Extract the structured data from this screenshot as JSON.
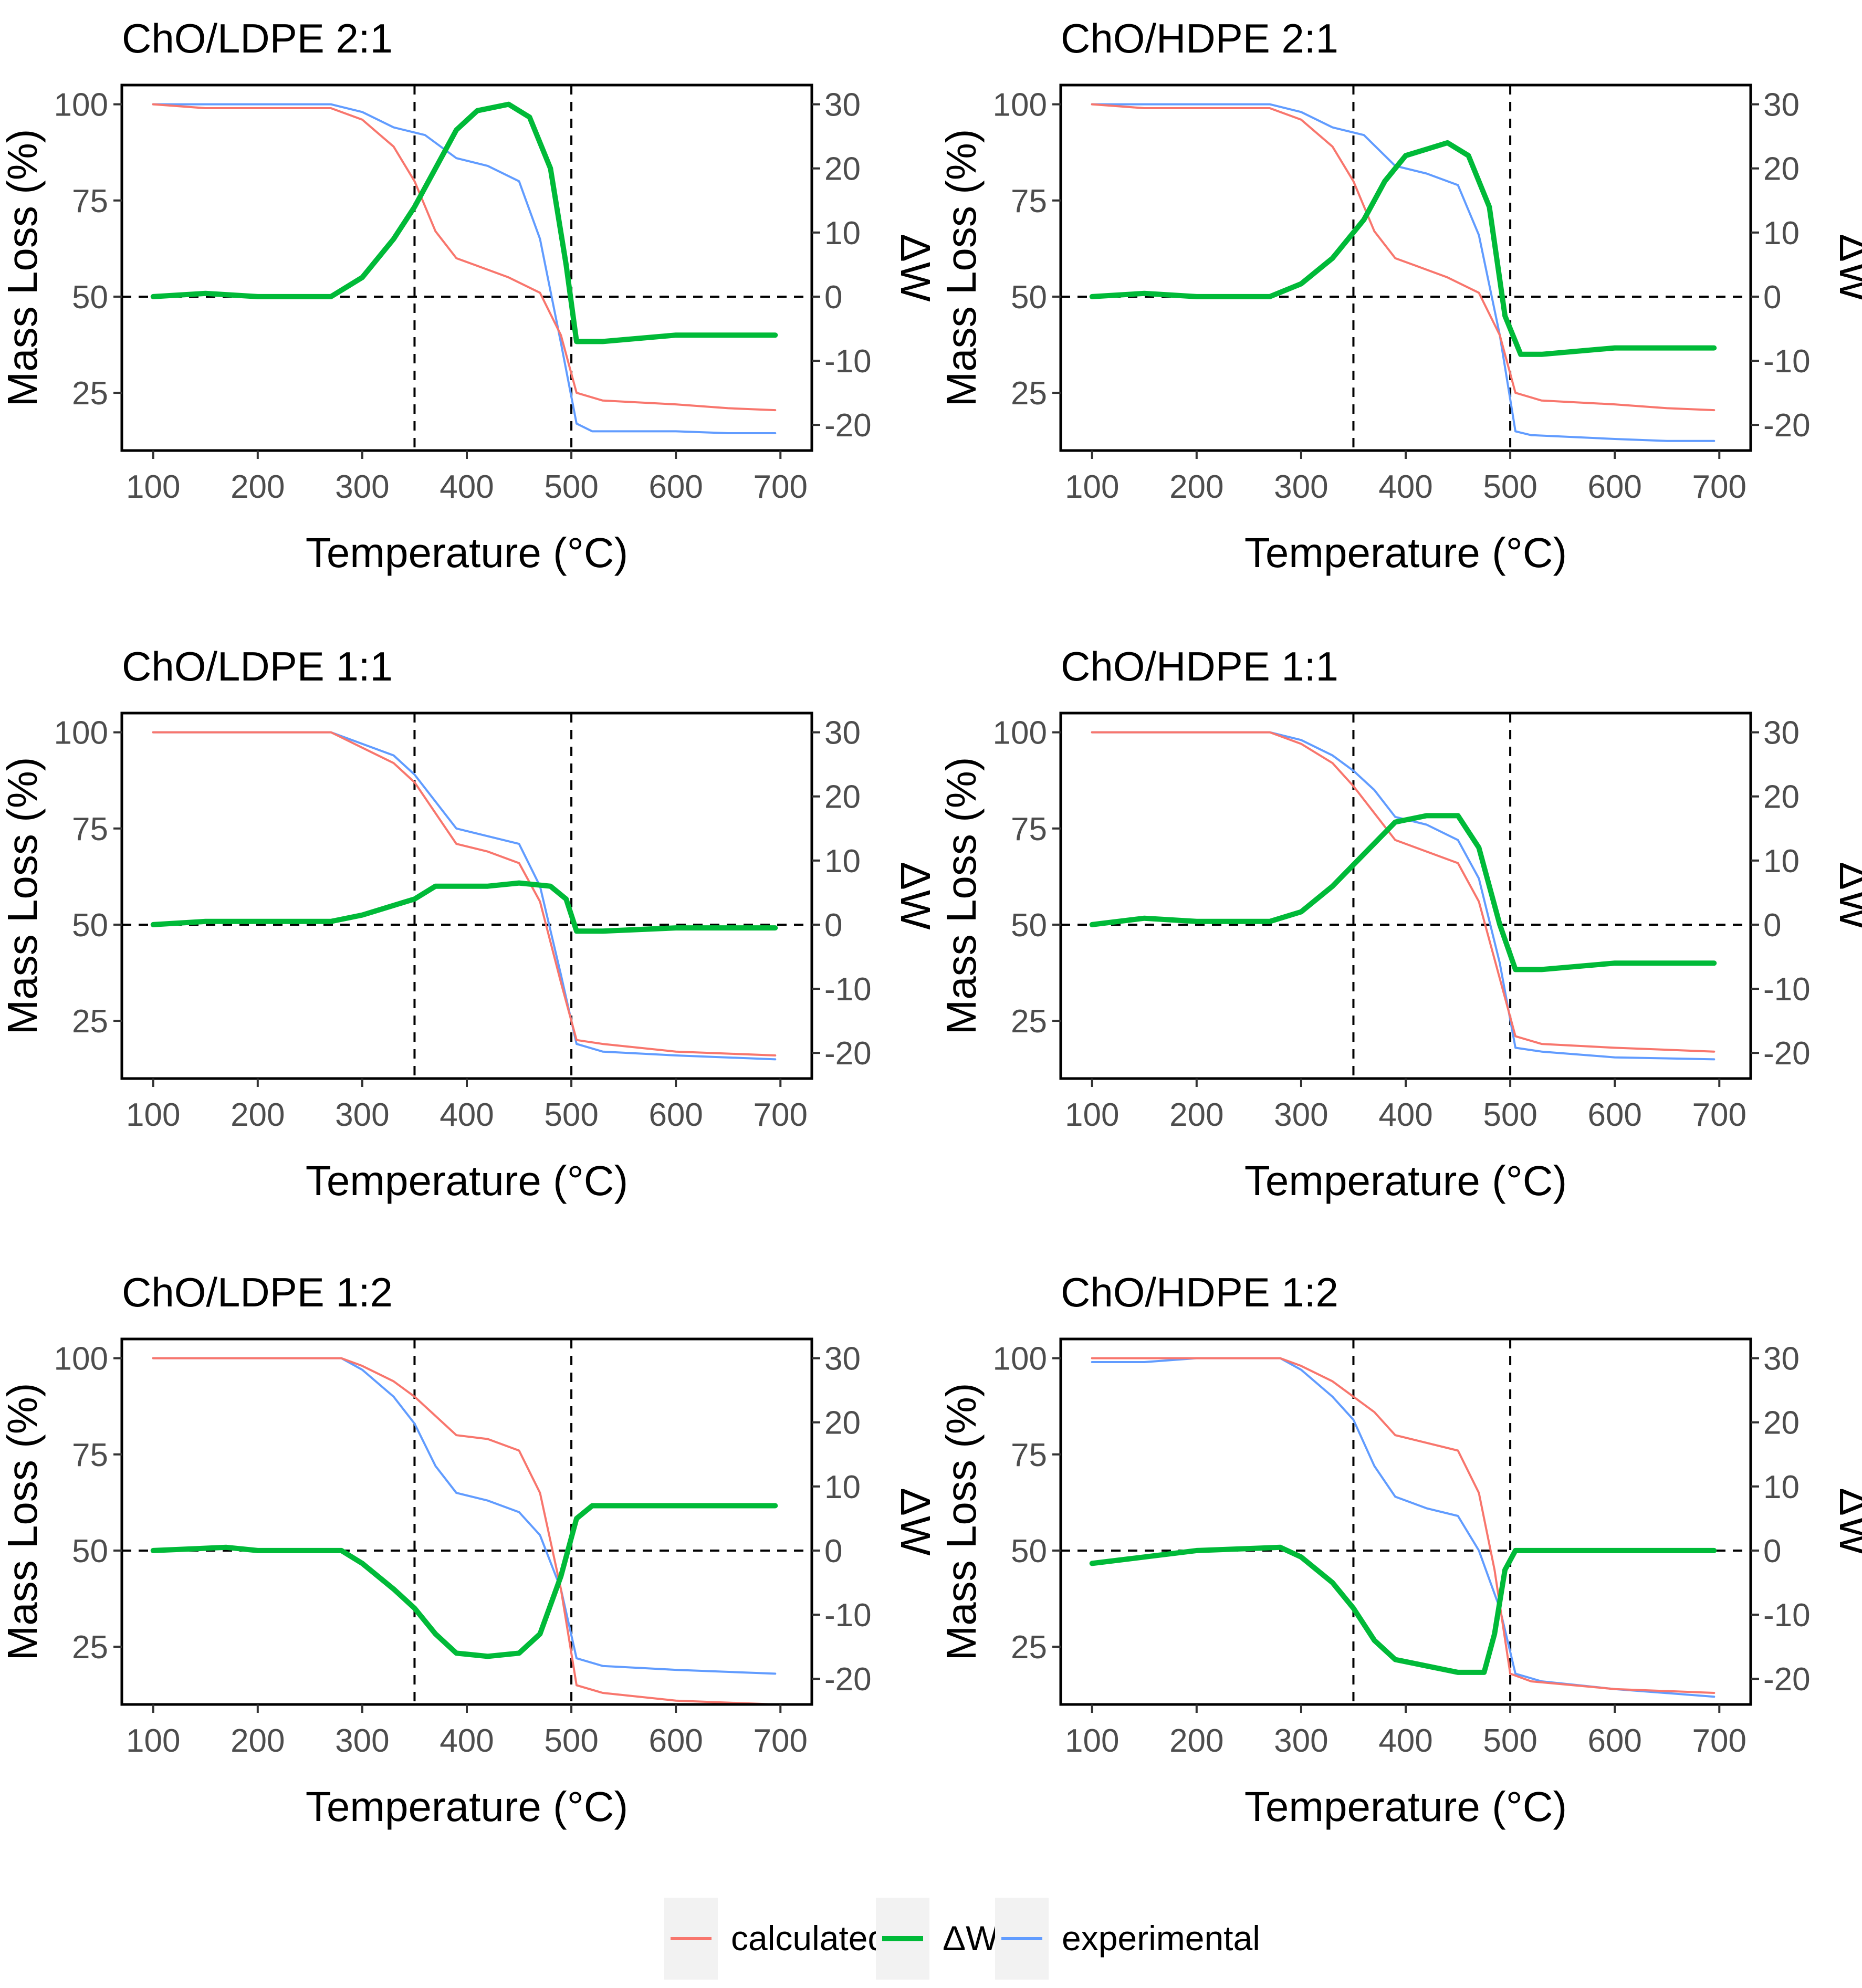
{
  "chart_data": [
    {
      "type": "line",
      "title": "ChO/LDPE 2:1",
      "xlabel": "Temperature (°C)",
      "ylabel": "Mass Loss (%)",
      "y2label": "ΔW",
      "xlim": [
        70,
        730
      ],
      "ylim": [
        10,
        105
      ],
      "y2lim": [
        -24,
        33
      ],
      "xticks": [
        100,
        200,
        300,
        400,
        500,
        600,
        700
      ],
      "yticks": [
        25,
        50,
        75,
        100
      ],
      "y2ticks": [
        -20,
        -10,
        0,
        10,
        20,
        30
      ],
      "vlines": [
        350,
        500
      ],
      "hline_y2": 0,
      "series": [
        {
          "name": "calculated",
          "axis": "left",
          "color": "#F8766D",
          "x": [
            100,
            150,
            220,
            270,
            300,
            330,
            350,
            370,
            390,
            410,
            440,
            470,
            490,
            505,
            530,
            600,
            650,
            695
          ],
          "y": [
            100,
            99,
            99,
            99,
            96,
            89,
            80,
            67,
            60,
            58,
            55,
            51,
            40,
            25,
            23,
            22,
            21,
            20.5
          ]
        },
        {
          "name": "experimental",
          "axis": "left",
          "color": "#619CFF",
          "x": [
            100,
            200,
            270,
            300,
            330,
            360,
            390,
            420,
            450,
            470,
            490,
            505,
            520,
            600,
            650,
            695
          ],
          "y": [
            100,
            100,
            100,
            98,
            94,
            92,
            86,
            84,
            80,
            65,
            38,
            17,
            15,
            15,
            14.5,
            14.5
          ]
        },
        {
          "name": "ΔW",
          "axis": "right",
          "color": "#00BA38",
          "x": [
            100,
            150,
            200,
            270,
            300,
            330,
            350,
            370,
            390,
            410,
            440,
            460,
            480,
            495,
            505,
            530,
            600,
            695
          ],
          "y": [
            0,
            0.5,
            0,
            0,
            3,
            9,
            14,
            20,
            26,
            29,
            30,
            28,
            20,
            5,
            -7,
            -7,
            -6,
            -6
          ]
        }
      ]
    },
    {
      "type": "line",
      "title": "ChO/HDPE 2:1",
      "xlabel": "Temperature (°C)",
      "ylabel": "Mass Loss (%)",
      "y2label": "ΔW",
      "xlim": [
        70,
        730
      ],
      "ylim": [
        10,
        105
      ],
      "y2lim": [
        -24,
        33
      ],
      "xticks": [
        100,
        200,
        300,
        400,
        500,
        600,
        700
      ],
      "yticks": [
        25,
        50,
        75,
        100
      ],
      "y2ticks": [
        -20,
        -10,
        0,
        10,
        20,
        30
      ],
      "vlines": [
        350,
        500
      ],
      "hline_y2": 0,
      "series": [
        {
          "name": "calculated",
          "axis": "left",
          "color": "#F8766D",
          "x": [
            100,
            150,
            220,
            270,
            300,
            330,
            350,
            370,
            390,
            410,
            440,
            470,
            490,
            505,
            530,
            600,
            650,
            695
          ],
          "y": [
            100,
            99,
            99,
            99,
            96,
            89,
            80,
            67,
            60,
            58,
            55,
            51,
            40,
            25,
            23,
            22,
            21,
            20.5
          ]
        },
        {
          "name": "experimental",
          "axis": "left",
          "color": "#619CFF",
          "x": [
            100,
            200,
            270,
            300,
            330,
            360,
            390,
            420,
            450,
            470,
            490,
            505,
            520,
            600,
            650,
            695
          ],
          "y": [
            100,
            100,
            100,
            98,
            94,
            92,
            84,
            82,
            79,
            66,
            40,
            15,
            14,
            13,
            12.5,
            12.5
          ]
        },
        {
          "name": "ΔW",
          "axis": "right",
          "color": "#00BA38",
          "x": [
            100,
            150,
            200,
            270,
            300,
            330,
            360,
            380,
            400,
            420,
            440,
            460,
            480,
            495,
            510,
            530,
            600,
            695
          ],
          "y": [
            0,
            0.5,
            0,
            0,
            2,
            6,
            12,
            18,
            22,
            23,
            24,
            22,
            14,
            -3,
            -9,
            -9,
            -8,
            -8
          ]
        }
      ]
    },
    {
      "type": "line",
      "title": "ChO/LDPE 1:1",
      "xlabel": "Temperature (°C)",
      "ylabel": "Mass Loss (%)",
      "y2label": "ΔW",
      "xlim": [
        70,
        730
      ],
      "ylim": [
        10,
        105
      ],
      "y2lim": [
        -24,
        33
      ],
      "xticks": [
        100,
        200,
        300,
        400,
        500,
        600,
        700
      ],
      "yticks": [
        25,
        50,
        75,
        100
      ],
      "y2ticks": [
        -20,
        -10,
        0,
        10,
        20,
        30
      ],
      "vlines": [
        350,
        500
      ],
      "hline_y2": 0,
      "series": [
        {
          "name": "calculated",
          "axis": "left",
          "color": "#F8766D",
          "x": [
            100,
            200,
            270,
            300,
            330,
            350,
            370,
            390,
            420,
            450,
            470,
            490,
            505,
            530,
            600,
            695
          ],
          "y": [
            100,
            100,
            100,
            96,
            92,
            87,
            79,
            71,
            69,
            66,
            56,
            35,
            20,
            19,
            17,
            16
          ]
        },
        {
          "name": "experimental",
          "axis": "left",
          "color": "#619CFF",
          "x": [
            100,
            200,
            270,
            300,
            330,
            350,
            370,
            390,
            420,
            450,
            470,
            490,
            505,
            530,
            600,
            695
          ],
          "y": [
            100,
            100,
            100,
            97,
            94,
            89,
            82,
            75,
            73,
            71,
            60,
            37,
            19,
            17,
            16,
            15
          ]
        },
        {
          "name": "ΔW",
          "axis": "right",
          "color": "#00BA38",
          "x": [
            100,
            150,
            200,
            270,
            300,
            330,
            350,
            370,
            390,
            420,
            450,
            480,
            495,
            505,
            530,
            600,
            695
          ],
          "y": [
            0,
            0.5,
            0.5,
            0.5,
            1.5,
            3,
            4,
            6,
            6,
            6,
            6.5,
            6,
            4,
            -1,
            -1,
            -0.5,
            -0.5
          ]
        }
      ]
    },
    {
      "type": "line",
      "title": "ChO/HDPE 1:1",
      "xlabel": "Temperature (°C)",
      "ylabel": "Mass Loss (%)",
      "y2label": "ΔW",
      "xlim": [
        70,
        730
      ],
      "ylim": [
        10,
        105
      ],
      "y2lim": [
        -24,
        33
      ],
      "xticks": [
        100,
        200,
        300,
        400,
        500,
        600,
        700
      ],
      "yticks": [
        25,
        50,
        75,
        100
      ],
      "y2ticks": [
        -20,
        -10,
        0,
        10,
        20,
        30
      ],
      "vlines": [
        350,
        500
      ],
      "hline_y2": 0,
      "series": [
        {
          "name": "calculated",
          "axis": "left",
          "color": "#F8766D",
          "x": [
            100,
            200,
            270,
            300,
            330,
            350,
            370,
            390,
            420,
            450,
            470,
            490,
            505,
            530,
            600,
            695
          ],
          "y": [
            100,
            100,
            100,
            97,
            92,
            86,
            79,
            72,
            69,
            66,
            56,
            36,
            21,
            19,
            18,
            17
          ]
        },
        {
          "name": "experimental",
          "axis": "left",
          "color": "#619CFF",
          "x": [
            100,
            200,
            270,
            300,
            330,
            350,
            370,
            390,
            420,
            450,
            470,
            490,
            505,
            530,
            600,
            695
          ],
          "y": [
            100,
            100,
            100,
            98,
            94,
            90,
            85,
            78,
            76,
            72,
            62,
            40,
            18,
            17,
            15.5,
            15
          ]
        },
        {
          "name": "ΔW",
          "axis": "right",
          "color": "#00BA38",
          "x": [
            100,
            150,
            200,
            270,
            300,
            330,
            360,
            390,
            420,
            450,
            470,
            490,
            505,
            530,
            600,
            695
          ],
          "y": [
            0,
            1,
            0.5,
            0.5,
            2,
            6,
            11,
            16,
            17,
            17,
            12,
            0,
            -7,
            -7,
            -6,
            -6
          ]
        }
      ]
    },
    {
      "type": "line",
      "title": "ChO/LDPE 1:2",
      "xlabel": "Temperature (°C)",
      "ylabel": "Mass Loss (%)",
      "y2label": "ΔW",
      "xlim": [
        70,
        730
      ],
      "ylim": [
        10,
        105
      ],
      "y2lim": [
        -24,
        33
      ],
      "xticks": [
        100,
        200,
        300,
        400,
        500,
        600,
        700
      ],
      "yticks": [
        25,
        50,
        75,
        100
      ],
      "y2ticks": [
        -20,
        -10,
        0,
        10,
        20,
        30
      ],
      "vlines": [
        350,
        500
      ],
      "hline_y2": 0,
      "series": [
        {
          "name": "calculated",
          "axis": "left",
          "color": "#F8766D",
          "x": [
            100,
            200,
            280,
            300,
            330,
            350,
            370,
            390,
            420,
            450,
            470,
            490,
            505,
            530,
            600,
            695
          ],
          "y": [
            100,
            100,
            100,
            98,
            94,
            90,
            85,
            80,
            79,
            76,
            65,
            40,
            15,
            13,
            11,
            10
          ]
        },
        {
          "name": "experimental",
          "axis": "left",
          "color": "#619CFF",
          "x": [
            100,
            200,
            280,
            300,
            330,
            350,
            370,
            390,
            420,
            450,
            470,
            490,
            505,
            530,
            600,
            695
          ],
          "y": [
            100,
            100,
            100,
            97,
            90,
            83,
            72,
            65,
            63,
            60,
            54,
            40,
            22,
            20,
            19,
            18
          ]
        },
        {
          "name": "ΔW",
          "axis": "right",
          "color": "#00BA38",
          "x": [
            100,
            170,
            200,
            280,
            300,
            330,
            350,
            370,
            390,
            420,
            450,
            470,
            490,
            505,
            520,
            600,
            695
          ],
          "y": [
            0,
            0.5,
            0,
            0,
            -2,
            -6,
            -9,
            -13,
            -16,
            -16.5,
            -16,
            -13,
            -4,
            5,
            7,
            7,
            7
          ]
        }
      ]
    },
    {
      "type": "line",
      "title": "ChO/HDPE 1:2",
      "xlabel": "Temperature (°C)",
      "ylabel": "Mass Loss (%)",
      "y2label": "ΔW",
      "xlim": [
        70,
        730
      ],
      "ylim": [
        10,
        105
      ],
      "y2lim": [
        -24,
        33
      ],
      "xticks": [
        100,
        200,
        300,
        400,
        500,
        600,
        700
      ],
      "yticks": [
        25,
        50,
        75,
        100
      ],
      "y2ticks": [
        -20,
        -10,
        0,
        10,
        20,
        30
      ],
      "vlines": [
        350,
        500
      ],
      "hline_y2": 0,
      "series": [
        {
          "name": "calculated",
          "axis": "left",
          "color": "#F8766D",
          "x": [
            100,
            200,
            280,
            300,
            330,
            350,
            370,
            390,
            420,
            450,
            470,
            485,
            500,
            520,
            600,
            695
          ],
          "y": [
            100,
            100,
            100,
            98,
            94,
            90,
            86,
            80,
            78,
            76,
            65,
            45,
            18,
            16,
            14,
            13
          ]
        },
        {
          "name": "experimental",
          "axis": "left",
          "color": "#619CFF",
          "x": [
            100,
            150,
            200,
            280,
            300,
            330,
            350,
            370,
            390,
            420,
            450,
            470,
            490,
            505,
            530,
            600,
            695
          ],
          "y": [
            99,
            99,
            100,
            100,
            97,
            90,
            84,
            72,
            64,
            61,
            59,
            50,
            35,
            18,
            16,
            14,
            12
          ]
        },
        {
          "name": "ΔW",
          "axis": "right",
          "color": "#00BA38",
          "x": [
            100,
            150,
            200,
            280,
            300,
            330,
            350,
            370,
            390,
            420,
            450,
            475,
            485,
            495,
            505,
            530,
            600,
            695
          ],
          "y": [
            -2,
            -1,
            0,
            0.5,
            -1,
            -5,
            -9,
            -14,
            -17,
            -18,
            -19,
            -19,
            -13,
            -3,
            0,
            0,
            0,
            0
          ]
        }
      ]
    }
  ],
  "legend": {
    "position": "bottom",
    "items": [
      {
        "label": "calculated",
        "color": "#F8766D"
      },
      {
        "label": "ΔW",
        "color": "#00BA38"
      },
      {
        "label": "experimental",
        "color": "#619CFF"
      }
    ]
  }
}
